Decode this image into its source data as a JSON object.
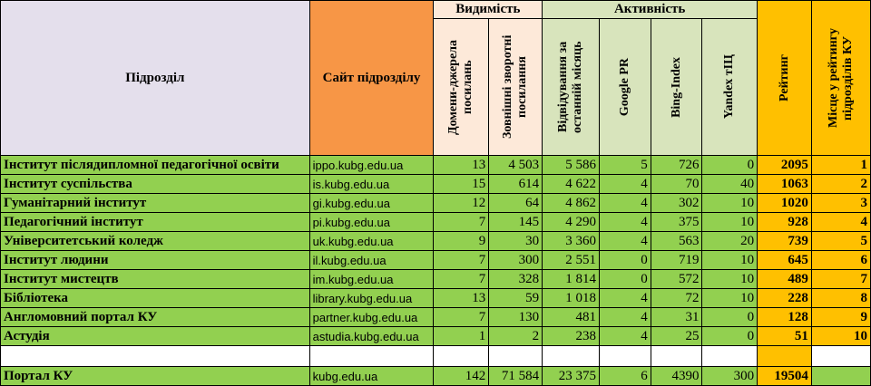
{
  "headers": {
    "subdivision": "Підрозділ",
    "site": "Сайт підрозділу",
    "visibility_group": "Видимість",
    "activity_group": "Активність",
    "domains_referring": "Домени-джерела посилань",
    "external_backlinks": "Зовнішні зворотні посилання",
    "visits_last_month": "Відвідування за останній місяць",
    "google_pr": "Google PR",
    "bing_index": "Bing-Index",
    "yandex_tic": "Yandex тІЦ",
    "rating": "Рейтинг",
    "place_in_rating": "Місце у рейтингу підрозділів КУ"
  },
  "rows": [
    {
      "name": "Інститут післядипломної педагогічної освіти",
      "site": "ippo.kubg.edu.ua",
      "domains": "13",
      "backlinks": "4 503",
      "visits": "5 586",
      "pr": "5",
      "bing": "726",
      "yandex": "0",
      "rating": "2095",
      "place": "1"
    },
    {
      "name": "Інститут суспільства",
      "site": "is.kubg.edu.ua",
      "domains": "15",
      "backlinks": "614",
      "visits": "4 622",
      "pr": "4",
      "bing": "70",
      "yandex": "40",
      "rating": "1063",
      "place": "2"
    },
    {
      "name": "Гуманітарний інститут",
      "site": "gi.kubg.edu.ua",
      "domains": "12",
      "backlinks": "64",
      "visits": "4 862",
      "pr": "4",
      "bing": "302",
      "yandex": "10",
      "rating": "1020",
      "place": "3"
    },
    {
      "name": "Педагогічний інститут",
      "site": "pi.kubg.edu.ua",
      "domains": "7",
      "backlinks": "145",
      "visits": "4 290",
      "pr": "4",
      "bing": "375",
      "yandex": "10",
      "rating": "928",
      "place": "4"
    },
    {
      "name": "Університетський коледж",
      "site": "uk.kubg.edu.ua",
      "domains": "9",
      "backlinks": "30",
      "visits": "3 360",
      "pr": "4",
      "bing": "563",
      "yandex": "20",
      "rating": "739",
      "place": "5"
    },
    {
      "name": "Інститут людини",
      "site": "il.kubg.edu.ua",
      "domains": "7",
      "backlinks": "300",
      "visits": "2 551",
      "pr": "0",
      "bing": "719",
      "yandex": "10",
      "rating": "645",
      "place": "6"
    },
    {
      "name": "Інститут мистецтв",
      "site": "im.kubg.edu.ua",
      "domains": "7",
      "backlinks": "328",
      "visits": "1 814",
      "pr": "0",
      "bing": "572",
      "yandex": "10",
      "rating": "489",
      "place": "7"
    },
    {
      "name": "Бібліотека",
      "site": "library.kubg.edu.ua",
      "domains": "13",
      "backlinks": "59",
      "visits": "1 018",
      "pr": "4",
      "bing": "72",
      "yandex": "10",
      "rating": "228",
      "place": "8"
    },
    {
      "name": "Англомовний портал КУ",
      "site": "partner.kubg.edu.ua",
      "domains": "7",
      "backlinks": "130",
      "visits": "481",
      "pr": "4",
      "bing": "31",
      "yandex": "0",
      "rating": "128",
      "place": "9"
    },
    {
      "name": "Астудія",
      "site": "astudia.kubg.edu.ua",
      "domains": "1",
      "backlinks": "2",
      "visits": "238",
      "pr": "4",
      "bing": "25",
      "yandex": "0",
      "rating": "51",
      "place": "10"
    }
  ],
  "total": {
    "name": "Портал КУ",
    "site": "kubg.edu.ua",
    "domains": "142",
    "backlinks": "71 584",
    "visits": "23 375",
    "pr": "6",
    "bing": "4390",
    "yandex": "300",
    "rating": "19504",
    "place": ""
  },
  "colors": {
    "subdivision_header": "#e4dfec",
    "site_header": "#f79646",
    "visibility": "#fde9d9",
    "activity": "#d8e4bc",
    "rating": "#ffc000",
    "row": "#92d050"
  }
}
